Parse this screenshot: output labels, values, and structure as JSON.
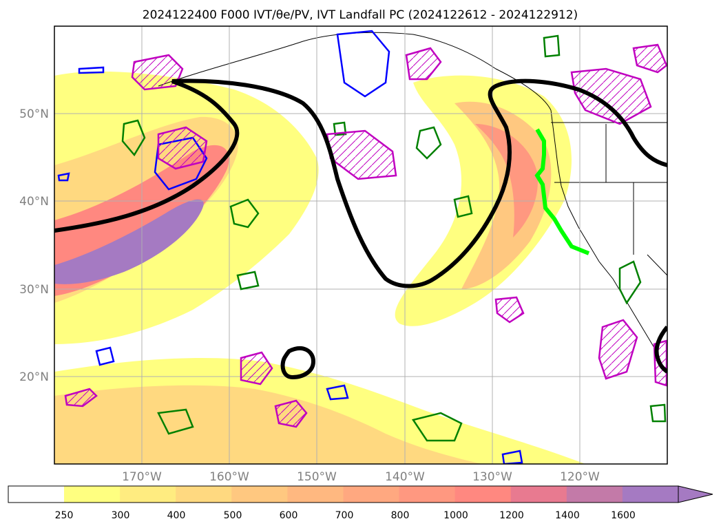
{
  "map": {
    "title": "2024122400 F000 IVT/θe/PV, IVT Landfall PC (2024122612 - 2024122912)",
    "lon_labels": [
      "170°W",
      "160°W",
      "150°W",
      "140°W",
      "130°W",
      "120°W"
    ],
    "lat_labels": [
      "50°N",
      "40°N",
      "30°N",
      "20°N"
    ],
    "lon_values": [
      -170,
      -160,
      -150,
      -140,
      -130,
      -120
    ],
    "lat_values": [
      50,
      40,
      30,
      20
    ],
    "extent": {
      "lon_min": -180,
      "lon_max": -110,
      "lat_min": 10,
      "lat_max": 60
    },
    "grid": true
  },
  "colorbar": {
    "ticks": [
      "250",
      "300",
      "400",
      "500",
      "600",
      "700",
      "800",
      "1000",
      "1200",
      "1400",
      "1600"
    ],
    "colors": [
      "#ffff80",
      "#ffec80",
      "#ffd980",
      "#ffc880",
      "#ffb880",
      "#ffa880",
      "#ff9880",
      "#ff8880",
      "#e87a90",
      "#c37aa8",
      "#a57ac2"
    ],
    "extend": "max"
  },
  "colors": {
    "landfall_line": "#00ff00",
    "pv_contour": "#0000ff",
    "theta_contour": "#008000",
    "hatched_contour": "#c000c0",
    "geopotential_contour": "#000000"
  }
}
